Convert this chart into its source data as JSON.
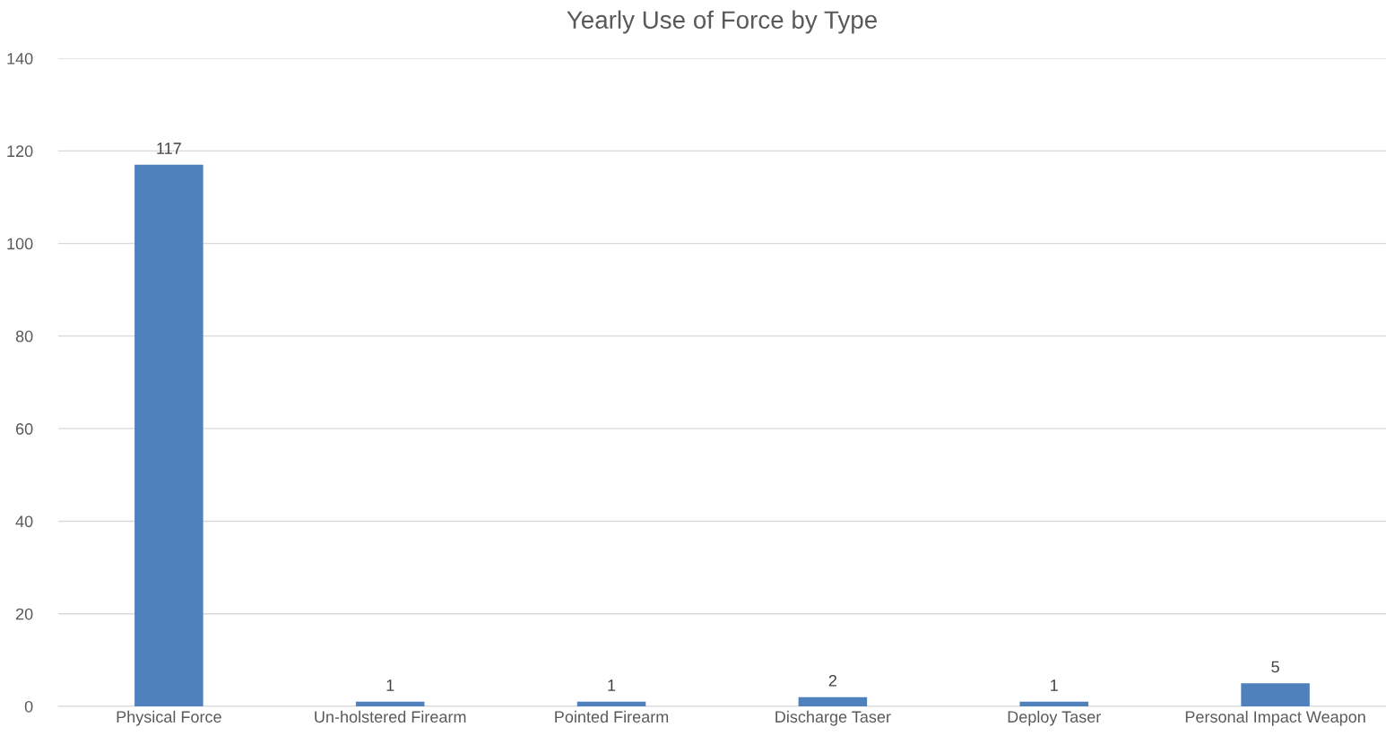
{
  "chart_data": {
    "type": "bar",
    "title": "Yearly Use of Force by Type",
    "categories": [
      "Physical Force",
      "Un-holstered Firearm",
      "Pointed Firearm",
      "Discharge Taser",
      "Deploy Taser",
      "Personal Impact Weapon"
    ],
    "values": [
      117,
      1,
      1,
      2,
      1,
      5
    ],
    "color": "#4f81bd",
    "ylim": [
      0,
      140
    ],
    "yticks": [
      0,
      20,
      40,
      60,
      80,
      100,
      120,
      140
    ],
    "grid": "y",
    "data_labels": true
  }
}
